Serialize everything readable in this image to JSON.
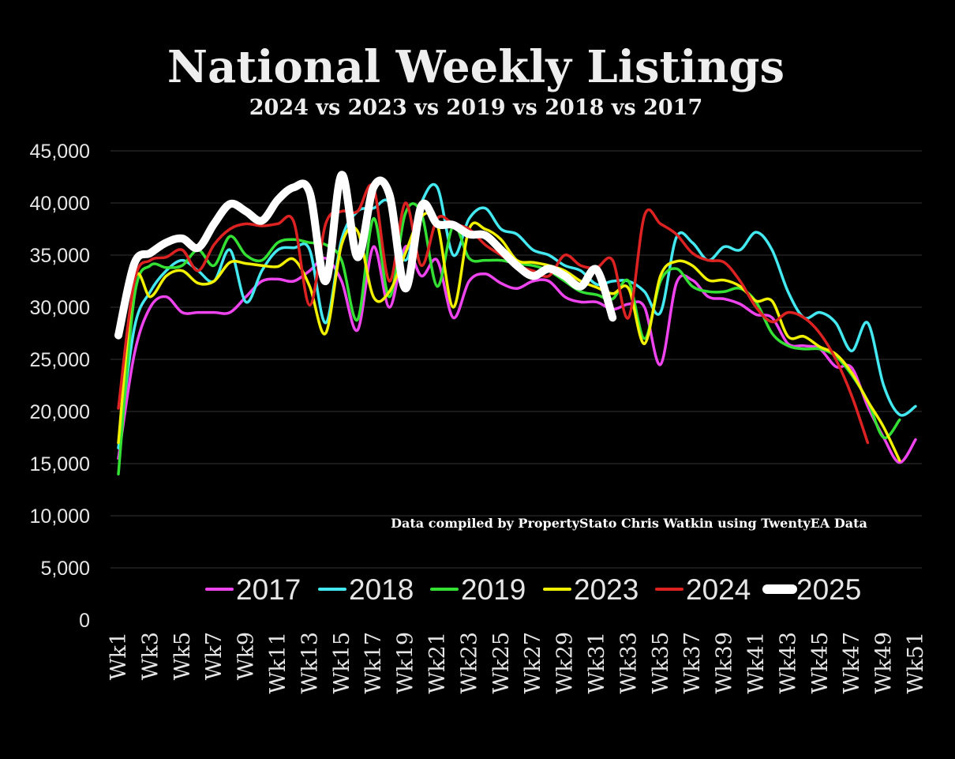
{
  "chart_data": {
    "type": "line",
    "title": "National Weekly Listings",
    "subtitle": "2024 vs 2023 vs 2019 vs 2018 vs 2017",
    "annotation": "Data compiled by PropertyStato Chris Watkin using TwentyEA Data",
    "ylim": [
      0,
      45000
    ],
    "yticks": [
      0,
      5000,
      10000,
      15000,
      20000,
      25000,
      30000,
      35000,
      40000,
      45000
    ],
    "ytick_labels": [
      "0",
      "5,000",
      "10,000",
      "15,000",
      "20,000",
      "25,000",
      "30,000",
      "35,000",
      "40,000",
      "45,000"
    ],
    "x_tick_labels": [
      "Wk1",
      "Wk3",
      "Wk5",
      "Wk7",
      "Wk9",
      "Wk11",
      "Wk13",
      "Wk15",
      "Wk17",
      "Wk19",
      "Wk21",
      "Wk23",
      "Wk25",
      "Wk27",
      "Wk29",
      "Wk31",
      "Wk33",
      "Wk35",
      "Wk37",
      "Wk39",
      "Wk41",
      "Wk43",
      "Wk45",
      "Wk47",
      "Wk49",
      "Wk51"
    ],
    "grid": true,
    "legend_position": "bottom",
    "series": [
      {
        "name": "2017",
        "color": "#ee44ee",
        "values": [
          15500,
          25500,
          30000,
          31000,
          29500,
          29500,
          29500,
          29500,
          31000,
          32500,
          32700,
          32500,
          33500,
          34700,
          32500,
          27800,
          35800,
          30000,
          35800,
          33000,
          34500,
          29000,
          32500,
          33200,
          32300,
          31800,
          32500,
          32500,
          31000,
          30500,
          30500,
          29800,
          30300,
          30000,
          24500,
          32300,
          32600,
          31000,
          30800,
          30300,
          29300,
          29000,
          26500,
          26300,
          26000,
          24300,
          24200,
          20500,
          17500,
          15100,
          17300
        ]
      },
      {
        "name": "2018",
        "color": "#44e8f0",
        "values": [
          16500,
          28000,
          31500,
          33500,
          34500,
          33500,
          32500,
          35500,
          30500,
          33500,
          35500,
          35700,
          35500,
          28500,
          36500,
          39200,
          39500,
          40000,
          34500,
          40000,
          41500,
          35000,
          38500,
          39500,
          37500,
          37000,
          35500,
          35000,
          34000,
          33500,
          32200,
          32500,
          32500,
          31500,
          29500,
          36700,
          36200,
          34500,
          35800,
          35500,
          37200,
          35500,
          31500,
          29000,
          29500,
          28500,
          25800,
          28500,
          22500,
          19700,
          20500
        ]
      },
      {
        "name": "2019",
        "color": "#33e033",
        "values": [
          14000,
          31000,
          34000,
          33800,
          34000,
          35500,
          34000,
          36800,
          35000,
          34500,
          36200,
          36500,
          36200,
          36000,
          34500,
          28800,
          38500,
          31000,
          39000,
          39000,
          32000,
          37800,
          34700,
          34500,
          34500,
          34200,
          34000,
          33500,
          32500,
          31500,
          31200,
          30800,
          32500,
          27000,
          32500,
          33700,
          32000,
          31500,
          31500,
          31800,
          30500,
          27500,
          26300,
          26000,
          26000,
          25300,
          23500,
          21000,
          17500,
          19200
        ]
      },
      {
        "name": "2023",
        "color": "#f0f000",
        "values": [
          17000,
          32500,
          31000,
          33000,
          33500,
          32300,
          32500,
          34300,
          34200,
          34000,
          33900,
          34600,
          32000,
          27500,
          36000,
          37300,
          31000,
          31500,
          35200,
          38700,
          38000,
          30000,
          37500,
          37500,
          36500,
          34500,
          34300,
          34000,
          33500,
          32500,
          31900,
          31300,
          31800,
          26500,
          33000,
          34400,
          34000,
          32600,
          32600,
          32000,
          30600,
          30600,
          27200,
          27200,
          26200,
          25500,
          23700,
          21000,
          18500,
          15300
        ]
      },
      {
        "name": "2024",
        "color": "#dd2222",
        "values": [
          20300,
          32500,
          34500,
          34800,
          35500,
          33500,
          36000,
          37500,
          38000,
          37800,
          38000,
          38200,
          30200,
          38000,
          39200,
          39200,
          41500,
          32500,
          40000,
          34000,
          38500,
          38000,
          37500,
          36000,
          35000,
          34000,
          33500,
          33000,
          35000,
          34000,
          33800,
          34500,
          29000,
          38800,
          38000,
          37000,
          35200,
          34500,
          34300,
          32500,
          30000,
          28600,
          29500,
          29000,
          27500,
          25000,
          21500,
          17000
        ]
      },
      {
        "name": "2025",
        "color": "#ffffff",
        "values": [
          27300,
          34200,
          35200,
          36200,
          36600,
          35700,
          38000,
          39900,
          39200,
          38300,
          40300,
          41500,
          41000,
          32500,
          42700,
          34800,
          41500,
          40800,
          31800,
          39700,
          38000,
          37900,
          37000,
          36900,
          35500,
          34000,
          33000,
          33700,
          33000,
          32000,
          33600,
          29000
        ]
      }
    ]
  }
}
